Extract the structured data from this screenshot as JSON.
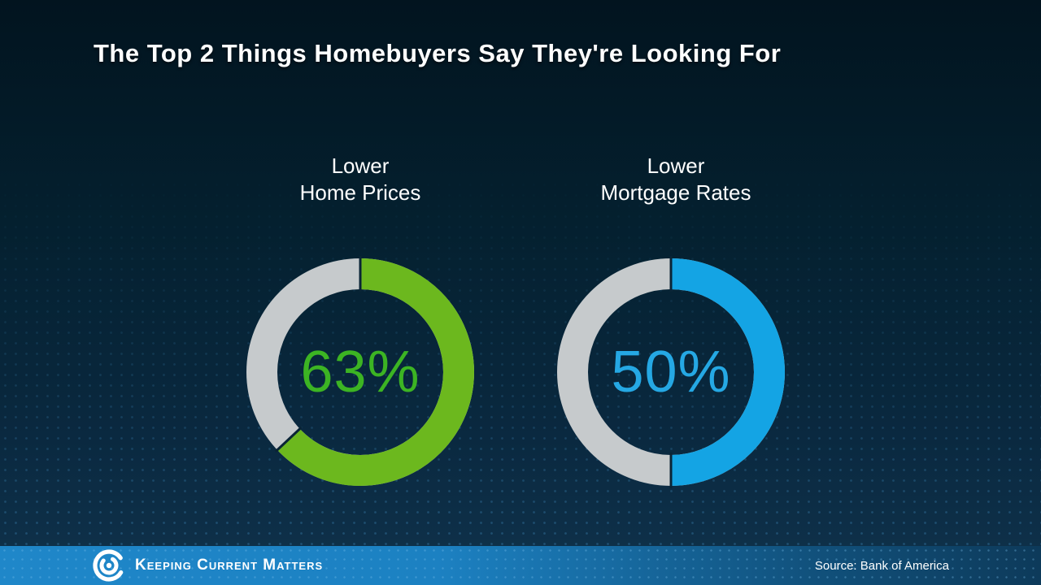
{
  "title": "The Top 2 Things Homebuyers Say They're Looking For",
  "chart_data": [
    {
      "type": "pie",
      "subtype": "donut",
      "title": "Lower Home Prices",
      "label_line1": "Lower",
      "label_line2": "Home Prices",
      "categories": [
        "Lower Home Prices",
        "Remainder"
      ],
      "values": [
        63,
        37
      ],
      "percent_label": "63%",
      "arc_color": "#6cb81e",
      "remainder_color": "#c6cacc",
      "percent_text_color": "#3cb423",
      "start_angle": "12 o'clock",
      "direction": "clockwise",
      "legend": "none"
    },
    {
      "type": "pie",
      "subtype": "donut",
      "title": "Lower Mortgage Rates",
      "label_line1": "Lower",
      "label_line2": "Mortgage Rates",
      "categories": [
        "Lower Mortgage Rates",
        "Remainder"
      ],
      "values": [
        50,
        50
      ],
      "percent_label": "50%",
      "arc_color": "#14a4e4",
      "remainder_color": "#c6cacc",
      "percent_text_color": "#25a8e4",
      "start_angle": "12 o'clock",
      "direction": "clockwise",
      "legend": "none"
    }
  ],
  "footer": {
    "brand": "Keeping Current Matters",
    "source": "Source: Bank of America"
  },
  "colors": {
    "background_top": "#02141f",
    "background_deep": "#0a2436",
    "title_text": "#ffffff",
    "footer_blue_left": "#1f87c9",
    "footer_blue_right": "#0d3a5a",
    "green": "#6cb81e",
    "blue": "#14a4e4",
    "gray": "#c6cacc"
  }
}
